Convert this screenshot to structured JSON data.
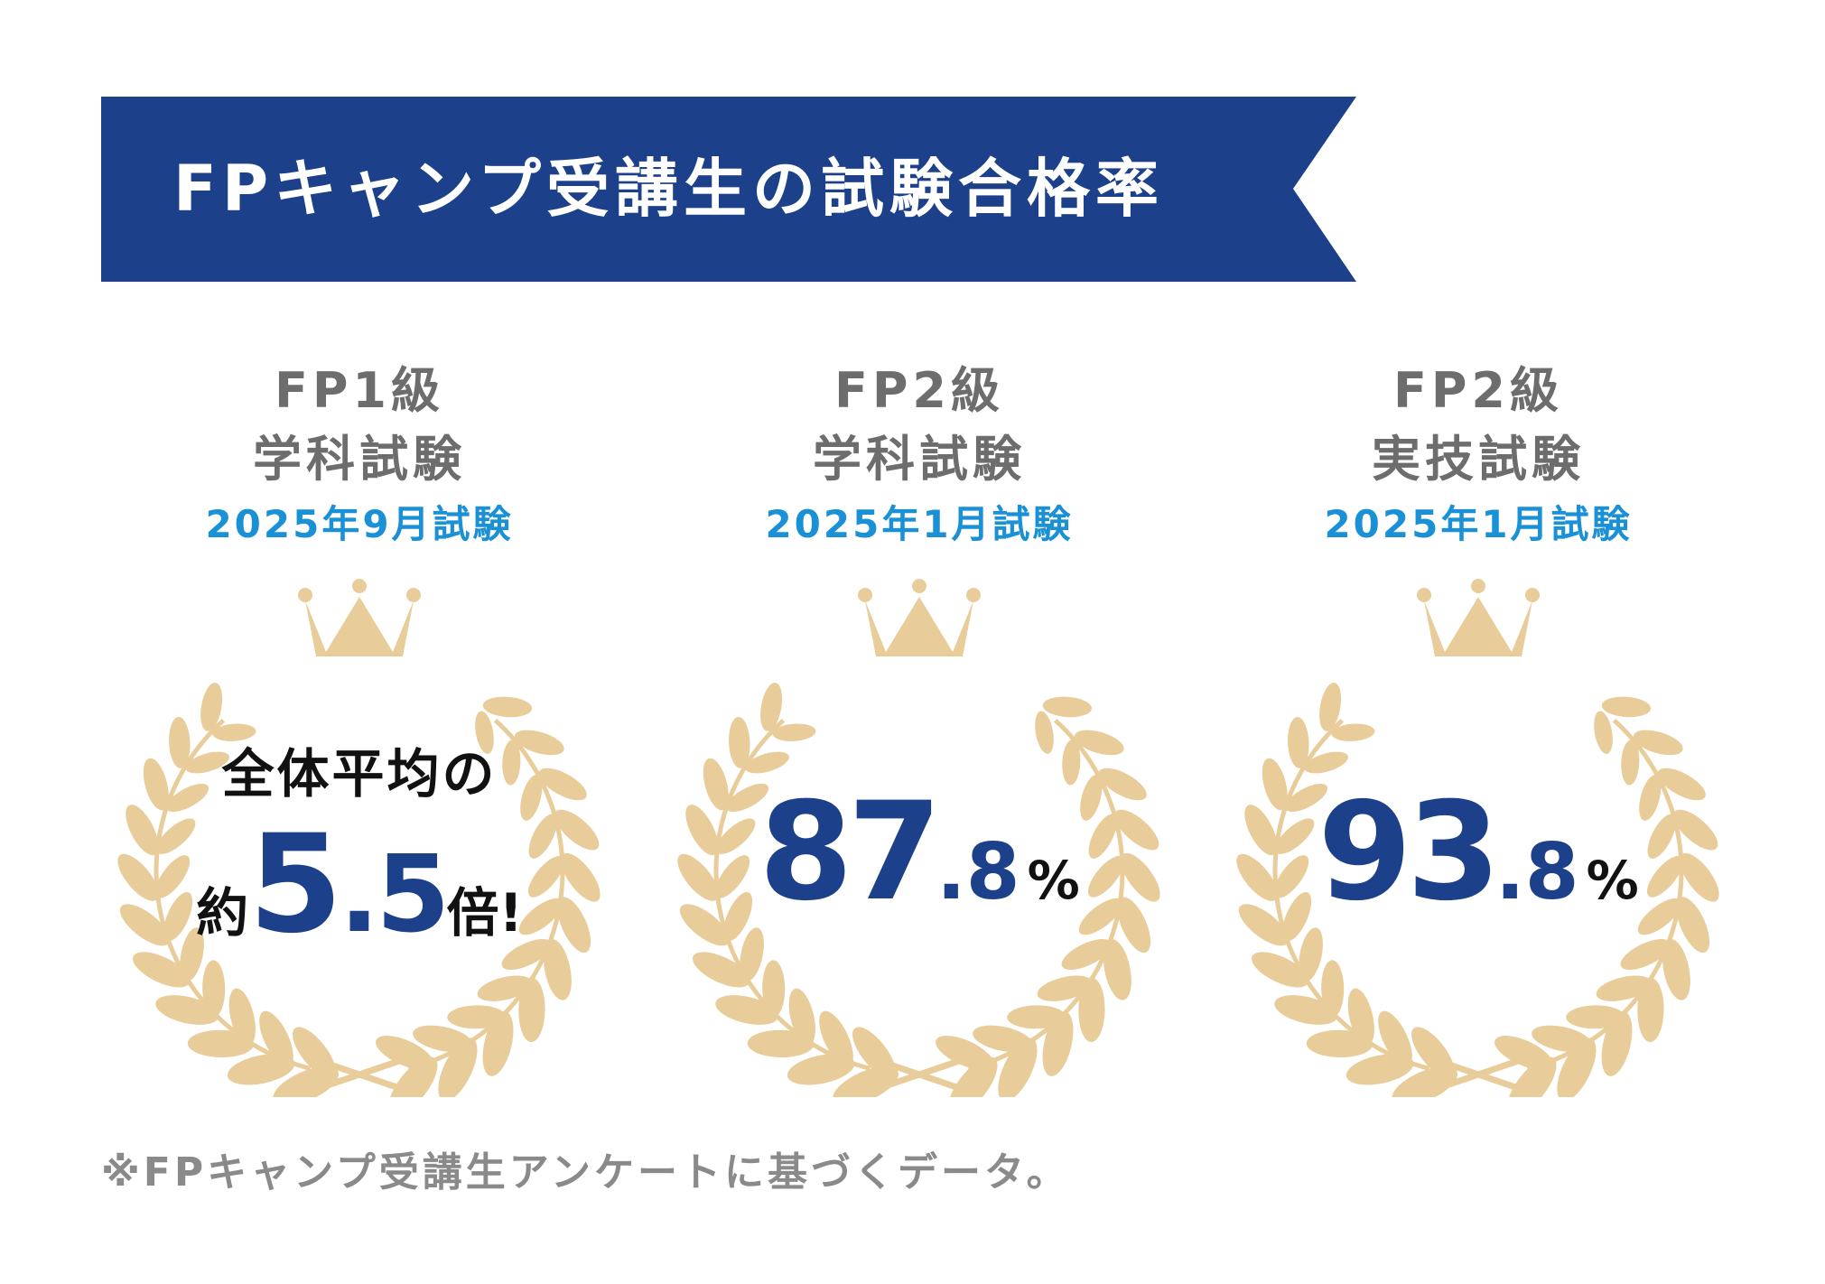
{
  "banner": {
    "title": "FPキャンプ受講生の試験合格率",
    "color": "#1c4089"
  },
  "columns": [
    {
      "grade": "FP1級",
      "exam": "学科試験",
      "date": "2025年9月試験",
      "stat": {
        "label": "全体平均の",
        "prefix": "約",
        "value_int": "5",
        "value_dec": ".5",
        "suffix": "倍!"
      }
    },
    {
      "grade": "FP2級",
      "exam": "学科試験",
      "date": "2025年1月試験",
      "stat": {
        "value_int": "87",
        "value_dec": ".8",
        "unit": "%"
      }
    },
    {
      "grade": "FP2級",
      "exam": "実技試験",
      "date": "2025年1月試験",
      "stat": {
        "value_int": "93",
        "value_dec": ".8",
        "unit": "%"
      }
    }
  ],
  "footnote": "※FPキャンプ受講生アンケートに基づくデータ。",
  "colors": {
    "navy": "#1c4089",
    "gold": "#e8cc9a",
    "date_blue": "#1a90d6",
    "gray_text": "#6d6d6d"
  },
  "icons": [
    "crown-icon",
    "laurel-wreath-icon"
  ]
}
